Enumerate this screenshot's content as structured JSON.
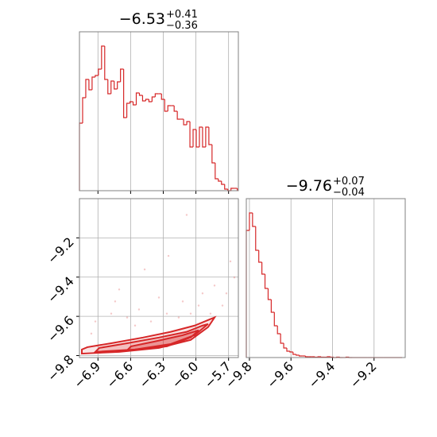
{
  "chart_data": [
    {
      "type": "histogram",
      "title": "−6.53",
      "title_plus": "+0.41",
      "title_minus": "−0.36",
      "color": "#d62728",
      "bins": [
        -7.07,
        -7.041,
        -7.012,
        -6.983,
        -6.954,
        -6.925,
        -6.896,
        -6.867,
        -6.838,
        -6.809,
        -6.78,
        -6.751,
        -6.722,
        -6.693,
        -6.664,
        -6.635,
        -6.606,
        -6.577,
        -6.548,
        -6.519,
        -6.49,
        -6.461,
        -6.432,
        -6.403,
        -6.374,
        -6.345,
        -6.316,
        -6.287,
        -6.258,
        -6.229,
        -6.2,
        -6.171,
        -6.142,
        -6.113,
        -6.084,
        -6.055,
        -6.026,
        -5.997,
        -5.968,
        -5.939,
        -5.91,
        -5.881,
        -5.852,
        -5.823,
        -5.794,
        -5.765,
        -5.736,
        -5.707,
        -5.678,
        -5.649,
        -5.62
      ],
      "values": [
        85,
        117,
        140,
        127,
        143,
        145,
        153,
        182,
        140,
        122,
        138,
        128,
        137,
        153,
        92,
        110,
        112,
        108,
        123,
        120,
        113,
        115,
        112,
        118,
        122,
        122,
        115,
        100,
        107,
        107,
        100,
        90,
        90,
        83,
        87,
        55,
        77,
        55,
        80,
        55,
        80,
        58,
        35,
        15,
        12,
        8,
        2,
        0,
        3,
        3
      ],
      "xlim": [
        -7.07,
        -5.61
      ],
      "xticks": [
        -6.9,
        -6.6,
        -6.3,
        -6.0,
        -5.7
      ],
      "ylim": [
        0,
        200
      ],
      "grid": true
    },
    {
      "type": "scatter",
      "color": "#d62728",
      "x": [
        -6.085,
        -6.252,
        -6.471,
        -6.705,
        -6.742,
        -5.683,
        -5.647,
        -5.829,
        -5.939,
        -6.121,
        -6.34,
        -6.523,
        -6.632,
        -6.924,
        -5.756,
        -5.866,
        -6.267,
        -6.413,
        -6.778,
        -5.975,
        -6.158,
        -6.559,
        -6.961,
        -5.72,
        -6.048
      ],
      "y": [
        -9.083,
        -9.292,
        -9.361,
        -9.463,
        -9.524,
        -9.32,
        -9.402,
        -9.443,
        -9.483,
        -9.524,
        -9.504,
        -9.565,
        -9.606,
        -9.626,
        -9.545,
        -9.586,
        -9.586,
        -9.626,
        -9.586,
        -9.545,
        -9.606,
        -9.647,
        -9.688,
        -9.483,
        -9.586
      ],
      "contours": [
        {
          "x": [
            -7.048,
            -6.705,
            -6.34,
            -6.048,
            -5.888,
            -5.829,
            -5.866,
            -6.012,
            -6.231,
            -6.486,
            -6.778,
            -6.997,
            -7.048
          ],
          "y": [
            -9.79,
            -9.781,
            -9.761,
            -9.72,
            -9.655,
            -9.606,
            -9.614,
            -9.647,
            -9.679,
            -9.708,
            -9.737,
            -9.757,
            -9.769
          ]
        },
        {
          "x": [
            -6.924,
            -6.559,
            -6.231,
            -6.012,
            -5.888,
            -5.939,
            -6.085,
            -6.34,
            -6.632,
            -6.888
          ],
          "y": [
            -9.781,
            -9.769,
            -9.741,
            -9.696,
            -9.639,
            -9.647,
            -9.679,
            -9.708,
            -9.737,
            -9.761
          ]
        },
        {
          "x": [
            -6.632,
            -6.267,
            -6.048,
            -5.975,
            -6.121,
            -6.377,
            -6.596
          ],
          "y": [
            -9.773,
            -9.753,
            -9.708,
            -9.671,
            -9.696,
            -9.728,
            -9.753
          ]
        }
      ],
      "xlim": [
        -7.07,
        -5.61
      ],
      "ylim": [
        -9.81,
        -9.0
      ],
      "xticks": [
        {
          "value": -6.9,
          "label": "−6.9"
        },
        {
          "value": -6.6,
          "label": "−6.6"
        },
        {
          "value": -6.3,
          "label": "−6.3"
        },
        {
          "value": -6.0,
          "label": "−6.0"
        },
        {
          "value": -5.7,
          "label": "−5.7"
        }
      ],
      "yticks": [
        {
          "value": -9.2,
          "label": "−9.2"
        },
        {
          "value": -9.4,
          "label": "−9.4"
        },
        {
          "value": -9.6,
          "label": "−9.6"
        },
        {
          "value": -9.8,
          "label": "−9.8"
        }
      ],
      "grid": true
    },
    {
      "type": "histogram",
      "title": "−9.76",
      "title_plus": "+0.07",
      "title_minus": "−0.04",
      "color": "#d62728",
      "bins": [
        -9.815,
        -9.8,
        -9.785,
        -9.77,
        -9.755,
        -9.74,
        -9.725,
        -9.71,
        -9.695,
        -9.68,
        -9.665,
        -9.65,
        -9.635,
        -9.62,
        -9.605,
        -9.59,
        -9.575,
        -9.56,
        -9.545,
        -9.53,
        -9.515,
        -9.5,
        -9.485,
        -9.47,
        -9.455,
        -9.44,
        -9.425,
        -9.41,
        -9.395,
        -9.38,
        -9.365,
        -9.35,
        -9.335,
        -9.32,
        -9.305,
        -9.29,
        -9.275,
        -9.26,
        -9.245,
        -9.23,
        -9.215,
        -9.2,
        -9.185,
        -9.17,
        -9.155,
        -9.14,
        -9.125,
        -9.11,
        -9.095,
        -9.08,
        -9.065
      ],
      "values": [
        160,
        182,
        165,
        135,
        120,
        105,
        87,
        73,
        57,
        40,
        30,
        18,
        12,
        8,
        7,
        4,
        3,
        2,
        2,
        1,
        1,
        1,
        0.5,
        1,
        0.5,
        0.5,
        1,
        0.5,
        0,
        0.5,
        0,
        0,
        0.5,
        0,
        0,
        0,
        0,
        0,
        0,
        0,
        0,
        0,
        0,
        0,
        0,
        0,
        0,
        0,
        0,
        0
      ],
      "xlim": [
        -9.815,
        -9.05
      ],
      "xticks": [
        {
          "value": -9.8,
          "label": "−9.8"
        },
        {
          "value": -9.6,
          "label": "−9.6"
        },
        {
          "value": -9.4,
          "label": "−9.4"
        },
        {
          "value": -9.2,
          "label": "−9.2"
        }
      ],
      "ylim": [
        0,
        200
      ],
      "grid": true
    }
  ]
}
